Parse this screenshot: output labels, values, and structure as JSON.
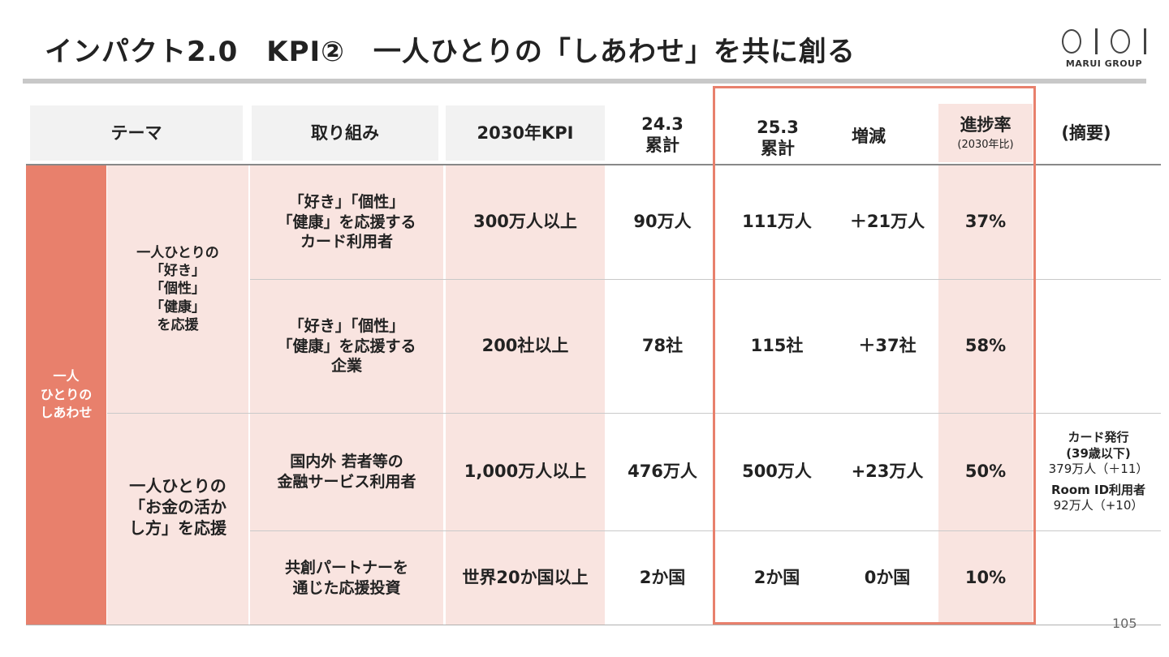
{
  "header": {
    "title": "インパクト2.0　KPI②　一人ひとりの「しあわせ」を共に創る",
    "logo_text": "MARUI GROUP"
  },
  "table": {
    "headers": {
      "theme": "テーマ",
      "initiative": "取り組み",
      "kpi2030": "2030年KPI",
      "cum243_l1": "24.3",
      "cum243_l2": "累計",
      "cum253_l1": "25.3",
      "cum253_l2": "累計",
      "change": "増減",
      "progress": "進捗率",
      "progress_sub": "(2030年比)",
      "summary": "(摘要)"
    },
    "theme_main": [
      "一人",
      "ひとりの",
      "しあわせ"
    ],
    "groups": [
      {
        "label": [
          "一人ひとりの",
          "「好き」",
          "「個性」",
          "「健康」",
          "を応援"
        ]
      },
      {
        "label": [
          "一人ひとりの",
          "「お金の活か",
          "し方」を応援"
        ]
      }
    ],
    "rows": [
      {
        "initiative": [
          "「好き」「個性」",
          "「健康」を応援する",
          "カード利用者"
        ],
        "kpi": "300万人以上",
        "cum243": "90万人",
        "cum253": "111万人",
        "change": "＋21万人",
        "progress": "37%",
        "summary": []
      },
      {
        "initiative": [
          "「好き」「個性」",
          "「健康」を応援する",
          "企業"
        ],
        "kpi": "200社以上",
        "cum243": "78社",
        "cum253": "115社",
        "change": "＋37社",
        "progress": "58%",
        "summary": []
      },
      {
        "initiative": [
          "国内外 若者等の",
          "金融サービス利用者"
        ],
        "kpi": "1,000万人以上",
        "cum243": "476万人",
        "cum253": "500万人",
        "change": "+23万人",
        "progress": "50%",
        "summary": [
          "カード発行",
          "(39歳以下)",
          "379万人（＋11）",
          "Room ID利用者",
          "92万人（+10）"
        ]
      },
      {
        "initiative": [
          "共創パートナーを",
          "通じた応援投資"
        ],
        "kpi": "世界20か国以上",
        "cum243": "2か国",
        "cum253": "2か国",
        "change": "0か国",
        "progress": "10%",
        "summary": []
      }
    ]
  },
  "page_number": "105",
  "colors": {
    "accent": "#e8806c",
    "pink": "#f9e4e0",
    "header_gray": "#f2f2f2"
  }
}
